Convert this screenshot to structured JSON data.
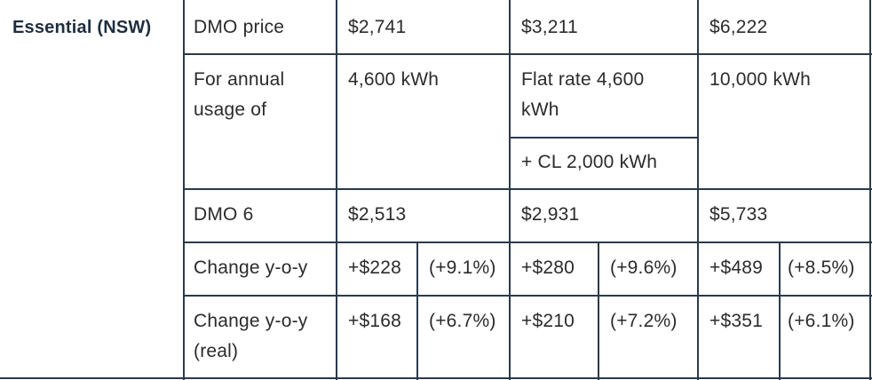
{
  "provider": "Essential (NSW)",
  "labels": {
    "dmo_price": "DMO price",
    "annual_usage": "For annual usage of",
    "dmo6": "DMO 6",
    "change": "Change y-o-y",
    "change_real": "Change y-o-y (real)"
  },
  "columns": [
    {
      "dmo_price": "$2,741",
      "usage": "4,600 kWh",
      "dmo6": "$2,513",
      "change_abs": "+$228",
      "change_pct": "(+9.1%)",
      "real_abs": "+$168",
      "real_pct": "(+6.7%)"
    },
    {
      "dmo_price": "$3,211",
      "usage": "Flat rate 4,600 kWh",
      "usage_extra": "+ CL 2,000 kWh",
      "dmo6": "$2,931",
      "change_abs": "+$280",
      "change_pct": "(+9.6%)",
      "real_abs": "+$210",
      "real_pct": "(+7.2%)"
    },
    {
      "dmo_price": "$6,222",
      "usage": "10,000 kWh",
      "dmo6": "$5,733",
      "change_abs": "+$489",
      "change_pct": "(+8.5%)",
      "real_abs": "+$351",
      "real_pct": "(+6.1%)"
    }
  ]
}
